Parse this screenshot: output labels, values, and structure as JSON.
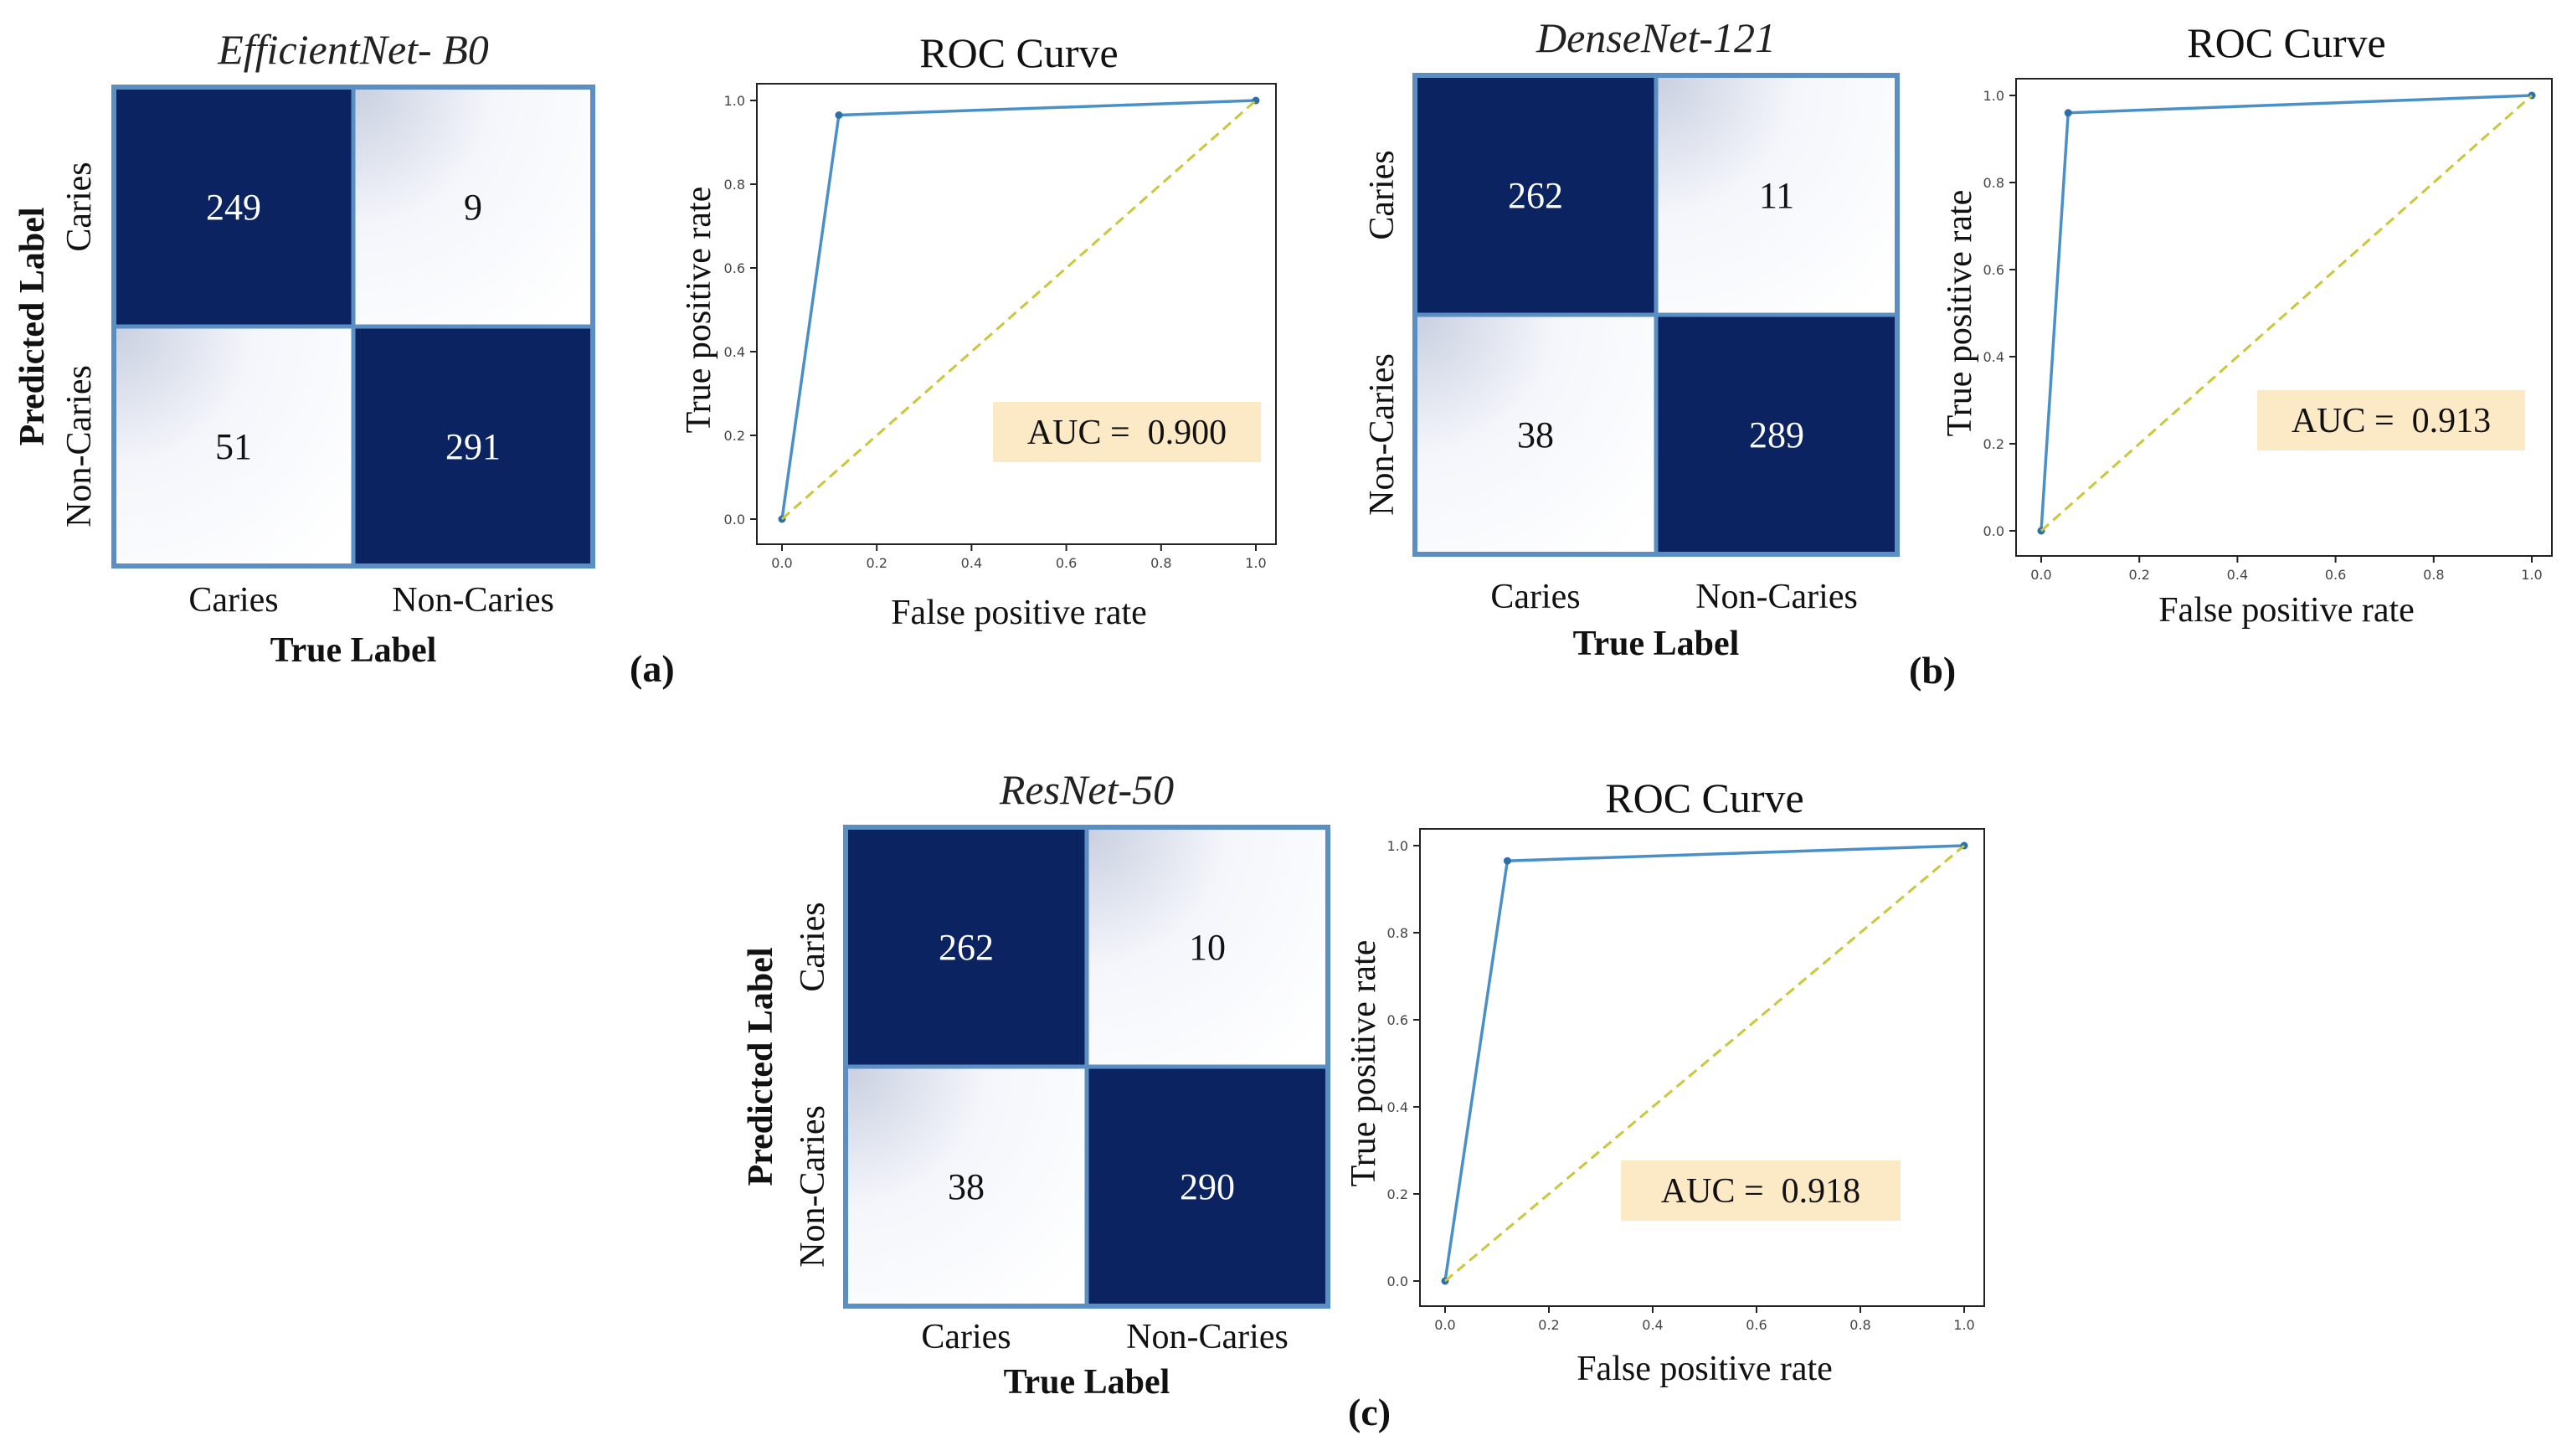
{
  "chart_data": [
    {
      "type": "heatmap",
      "title": "EfficientNet- B0",
      "xlabel": "True Label",
      "ylabel": "Predicted Label",
      "x_categories": [
        "Caries",
        "Non-Caries"
      ],
      "y_categories": [
        "Caries",
        "Non-Caries"
      ],
      "values": [
        [
          249,
          9
        ],
        [
          51,
          291
        ]
      ]
    },
    {
      "type": "line",
      "title": "ROC Curve",
      "xlabel": "False positive rate",
      "ylabel": "True positive rate",
      "xlim": [
        0,
        1
      ],
      "ylim": [
        0,
        1
      ],
      "xticks": [
        "0.0",
        "0.2",
        "0.4",
        "0.6",
        "0.8",
        "1.0"
      ],
      "yticks": [
        "0.0",
        "0.2",
        "0.4",
        "0.6",
        "0.8",
        "1.0"
      ],
      "series": [
        {
          "name": "ROC",
          "x": [
            0.0,
            0.12,
            1.0
          ],
          "y": [
            0.0,
            0.965,
            1.0
          ],
          "color": "#4a90c8"
        },
        {
          "name": "Chance",
          "x": [
            0.0,
            1.0
          ],
          "y": [
            0.0,
            1.0
          ],
          "color": "#c8c83a",
          "dashed": true
        }
      ],
      "annotation": "AUC =  0.900",
      "annotation_bg": "#fce9c6"
    },
    {
      "type": "heatmap",
      "title": "DenseNet-121",
      "xlabel": "True Label",
      "ylabel": "",
      "x_categories": [
        "Caries",
        "Non-Caries"
      ],
      "y_categories": [
        "Caries",
        "Non-Caries"
      ],
      "values": [
        [
          262,
          11
        ],
        [
          38,
          289
        ]
      ]
    },
    {
      "type": "line",
      "title": "ROC Curve",
      "xlabel": "False positive rate",
      "ylabel": "True positive rate",
      "xlim": [
        0,
        1
      ],
      "ylim": [
        0,
        1
      ],
      "xticks": [
        "0.0",
        "0.2",
        "0.4",
        "0.6",
        "0.8",
        "1.0"
      ],
      "yticks": [
        "0.0",
        "0.2",
        "0.4",
        "0.6",
        "0.8",
        "1.0"
      ],
      "series": [
        {
          "name": "ROC",
          "x": [
            0.0,
            0.055,
            1.0
          ],
          "y": [
            0.0,
            0.96,
            1.0
          ],
          "color": "#4a90c8"
        },
        {
          "name": "Chance",
          "x": [
            0.0,
            1.0
          ],
          "y": [
            0.0,
            1.0
          ],
          "color": "#c8c83a",
          "dashed": true
        }
      ],
      "annotation": "AUC =  0.913",
      "annotation_bg": "#fce9c6"
    },
    {
      "type": "heatmap",
      "title": "ResNet-50",
      "xlabel": "True Label",
      "ylabel": "Predicted Label",
      "x_categories": [
        "Caries",
        "Non-Caries"
      ],
      "y_categories": [
        "Caries",
        "Non-Caries"
      ],
      "values": [
        [
          262,
          10
        ],
        [
          38,
          290
        ]
      ]
    },
    {
      "type": "line",
      "title": "ROC Curve",
      "xlabel": "False positive rate",
      "ylabel": "True positive rate",
      "xlim": [
        0,
        1
      ],
      "ylim": [
        0,
        1
      ],
      "xticks": [
        "0.0",
        "0.2",
        "0.4",
        "0.6",
        "0.8",
        "1.0"
      ],
      "yticks": [
        "0.0",
        "0.2",
        "0.4",
        "0.6",
        "0.8",
        "1.0"
      ],
      "series": [
        {
          "name": "ROC",
          "x": [
            0.0,
            0.12,
            1.0
          ],
          "y": [
            0.0,
            0.965,
            1.0
          ],
          "color": "#4a90c8"
        },
        {
          "name": "Chance",
          "x": [
            0.0,
            1.0
          ],
          "y": [
            0.0,
            1.0
          ],
          "color": "#c8c83a",
          "dashed": true
        }
      ],
      "annotation": "AUC =  0.918",
      "annotation_bg": "#fce9c6"
    }
  ],
  "panel_labels": [
    "(a)",
    "(b)",
    "(c)"
  ],
  "colors": {
    "dark_cell": "#0b2360",
    "light_cell": "#ffffff",
    "cell_border": "#5b8fc3",
    "dark_text": "#ffffff",
    "light_text": "#111111"
  }
}
